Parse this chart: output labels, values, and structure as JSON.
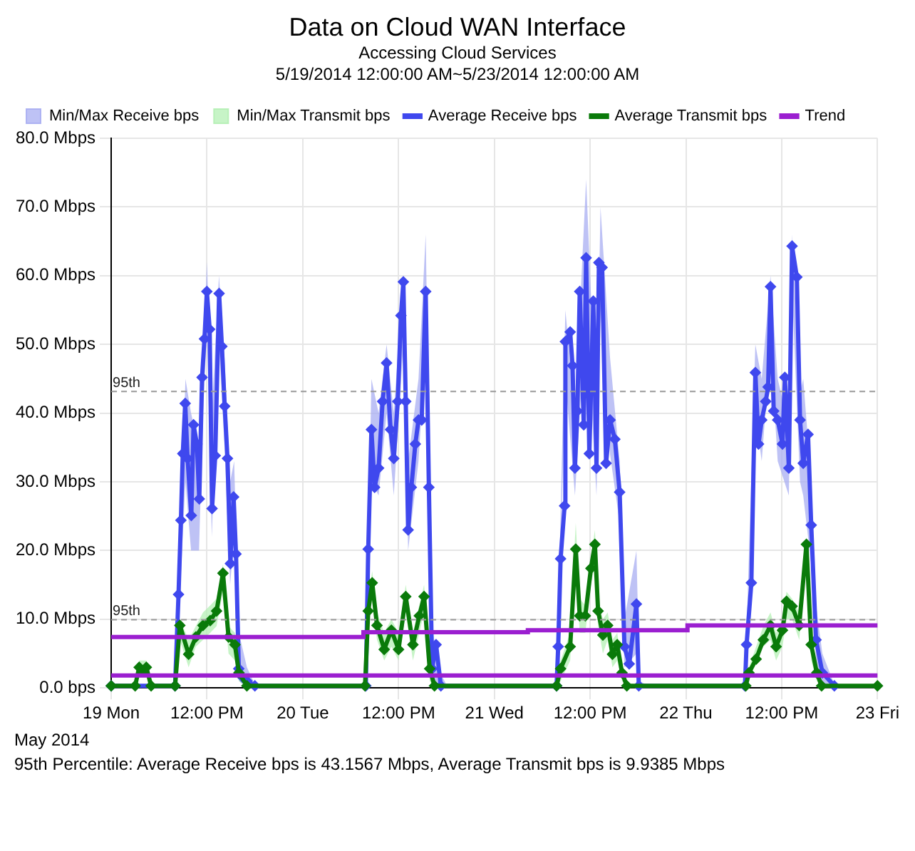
{
  "chart_data": {
    "type": "line",
    "title": "Data on Cloud WAN Interface",
    "subtitle": "Accessing Cloud Services\n5/19/2014 12:00:00 AM~5/23/2014 12:00:00 AM",
    "xlim": [
      "2014-05-19T00:00",
      "2014-05-23T00:00"
    ],
    "xticks": [
      {
        "value": "2014-05-19T00:00",
        "label": "19 Mon"
      },
      {
        "value": "2014-05-19T12:00",
        "label": "12:00 PM"
      },
      {
        "value": "2014-05-20T00:00",
        "label": "20 Tue"
      },
      {
        "value": "2014-05-20T12:00",
        "label": "12:00 PM"
      },
      {
        "value": "2014-05-21T00:00",
        "label": "21 Wed"
      },
      {
        "value": "2014-05-21T12:00",
        "label": "12:00 PM"
      },
      {
        "value": "2014-05-22T00:00",
        "label": "22 Thu"
      },
      {
        "value": "2014-05-22T12:00",
        "label": "12:00 PM"
      },
      {
        "value": "2014-05-23T00:00",
        "label": "23 Fri"
      }
    ],
    "ylim": [
      0,
      80
    ],
    "yticks": [
      {
        "value": 0,
        "label": "0.0 bps"
      },
      {
        "value": 10,
        "label": "10.0 Mbps"
      },
      {
        "value": 20,
        "label": "20.0 Mbps"
      },
      {
        "value": 30,
        "label": "30.0 Mbps"
      },
      {
        "value": 40,
        "label": "40.0 Mbps"
      },
      {
        "value": 50,
        "label": "50.0 Mbps"
      },
      {
        "value": 60,
        "label": "60.0 Mbps"
      },
      {
        "value": 70,
        "label": "70.0 Mbps"
      },
      {
        "value": 80,
        "label": "80.0 Mbps"
      }
    ],
    "grid": true,
    "legend": "top left",
    "series": [
      {
        "name": "Min/Max Receive bps",
        "type": "area",
        "color": "#a8aef2",
        "x": [
          "2014-05-19T00:00",
          "2014-05-19T08:00",
          "2014-05-19T08:30",
          "2014-05-19T09:18",
          "2014-05-19T10:00",
          "2014-05-19T11:00",
          "2014-05-19T11:30",
          "2014-05-19T12:00",
          "2014-05-19T12:36",
          "2014-05-19T13:30",
          "2014-05-19T14:12",
          "2014-05-19T14:54",
          "2014-05-19T15:24",
          "2014-05-19T16:00",
          "2014-05-19T17:00",
          "2014-05-19T18:00",
          "2014-05-20T07:54",
          "2014-05-20T08:36",
          "2014-05-20T09:30",
          "2014-05-20T10:30",
          "2014-05-20T11:24",
          "2014-05-20T12:36",
          "2014-05-20T13:12",
          "2014-05-20T14:30",
          "2014-05-20T15:24",
          "2014-05-20T15:48",
          "2014-05-20T16:18",
          "2014-05-20T17:18",
          "2014-05-20T18:00",
          "2014-05-21T07:48",
          "2014-05-21T08:54",
          "2014-05-21T10:06",
          "2014-05-21T11:30",
          "2014-05-21T12:48",
          "2014-05-21T13:18",
          "2014-05-21T14:30",
          "2014-05-21T15:42",
          "2014-05-21T16:18",
          "2014-05-21T17:48",
          "2014-05-21T18:12",
          "2014-05-21T19:00",
          "2014-05-22T07:24",
          "2014-05-22T08:42",
          "2014-05-22T09:30",
          "2014-05-22T10:36",
          "2014-05-22T11:30",
          "2014-05-22T12:54",
          "2014-05-22T13:18",
          "2014-05-22T14:18",
          "2014-05-22T14:42",
          "2014-05-22T15:42",
          "2014-05-22T16:18",
          "2014-05-22T17:06",
          "2014-05-22T18:36",
          "2014-05-23T00:00"
        ],
        "values": [
          null,
          null,
          null,
          null,
          null,
          null,
          null,
          null,
          null,
          null,
          null,
          null,
          null,
          null,
          null,
          null,
          null,
          null,
          null,
          null,
          null,
          null,
          null,
          null,
          null,
          null,
          null,
          null,
          null,
          null,
          null,
          null,
          null,
          null,
          null,
          null,
          null,
          null,
          null,
          null,
          null,
          null,
          null,
          null,
          null,
          null,
          null,
          null,
          null,
          null,
          null,
          null,
          null,
          null,
          null
        ],
        "upper": [
          0.5,
          0.5,
          16,
          45,
          40,
          35,
          48,
          62,
          40,
          60,
          48,
          30,
          33,
          8,
          3,
          0.5,
          0.5,
          45,
          40,
          50,
          40,
          60,
          33,
          45,
          66,
          38,
          8,
          2,
          0.5,
          0.5,
          55,
          40,
          74,
          38,
          70,
          48,
          33,
          10,
          20,
          1,
          0.5,
          0.5,
          50,
          45,
          60,
          45,
          38,
          66,
          43,
          45,
          30,
          12,
          5,
          0.5,
          0.5
        ],
        "lower": [
          0,
          0,
          11,
          30,
          20,
          20,
          40,
          52,
          22,
          50,
          35,
          15,
          22,
          1,
          0,
          0,
          0,
          30,
          28,
          40,
          28,
          50,
          20,
          33,
          50,
          22,
          1,
          0,
          0,
          0,
          45,
          28,
          55,
          28,
          55,
          34,
          24,
          3,
          5,
          0,
          0,
          0,
          40,
          33,
          50,
          33,
          28,
          58,
          30,
          28,
          18,
          4,
          0,
          0,
          0
        ]
      },
      {
        "name": "Min/Max Transmit bps",
        "type": "area",
        "color": "#b4f0b4",
        "x": [
          "2014-05-19T00:00",
          "2014-05-19T03:00",
          "2014-05-19T03:30",
          "2014-05-19T04:24",
          "2014-05-19T05:00",
          "2014-05-19T08:00",
          "2014-05-19T08:36",
          "2014-05-19T09:42",
          "2014-05-19T10:36",
          "2014-05-19T11:30",
          "2014-05-19T12:24",
          "2014-05-19T13:12",
          "2014-05-19T14:00",
          "2014-05-19T14:42",
          "2014-05-19T15:30",
          "2014-05-19T16:00",
          "2014-05-19T17:00",
          "2014-05-20T07:48",
          "2014-05-20T08:12",
          "2014-05-20T08:42",
          "2014-05-20T09:18",
          "2014-05-20T10:12",
          "2014-05-20T11:06",
          "2014-05-20T12:00",
          "2014-05-20T12:54",
          "2014-05-20T13:48",
          "2014-05-20T14:36",
          "2014-05-20T15:12",
          "2014-05-20T15:54",
          "2014-05-20T16:30",
          "2014-05-21T07:48",
          "2014-05-21T08:18",
          "2014-05-21T09:30",
          "2014-05-21T10:12",
          "2014-05-21T10:42",
          "2014-05-21T11:24",
          "2014-05-21T12:06",
          "2014-05-21T12:36",
          "2014-05-21T13:00",
          "2014-05-21T13:36",
          "2014-05-21T14:12",
          "2014-05-21T14:48",
          "2014-05-21T15:24",
          "2014-05-21T16:00",
          "2014-05-21T16:36",
          "2014-05-22T07:30",
          "2014-05-22T07:54",
          "2014-05-22T08:48",
          "2014-05-22T09:42",
          "2014-05-22T10:36",
          "2014-05-22T11:18",
          "2014-05-22T12:06",
          "2014-05-22T12:36",
          "2014-05-22T13:18",
          "2014-05-22T14:12",
          "2014-05-22T15:06",
          "2014-05-22T15:42",
          "2014-05-22T16:24",
          "2014-05-22T17:00",
          "2014-05-23T00:00"
        ],
        "values": [
          null,
          null,
          null,
          null,
          null,
          null,
          null,
          null,
          null,
          null,
          null,
          null,
          null,
          null,
          null,
          null,
          null,
          null,
          null,
          null,
          null,
          null,
          null,
          null,
          null,
          null,
          null,
          null,
          null,
          null,
          null,
          null,
          null,
          null,
          null,
          null,
          null,
          null,
          null,
          null,
          null,
          null,
          null,
          null,
          null,
          null,
          null,
          null,
          null,
          null,
          null,
          null,
          null,
          null,
          null,
          null,
          null,
          null,
          null,
          null
        ],
        "upper": [
          0.5,
          0.5,
          4,
          4,
          0.5,
          0.5,
          10,
          7,
          9,
          11,
          12,
          13,
          18,
          9,
          8,
          3,
          0.5,
          0.5,
          13,
          17,
          11,
          8,
          10,
          8,
          15,
          8,
          12,
          15,
          4,
          0.5,
          0.5,
          4,
          8,
          24,
          13,
          12,
          19,
          23,
          13,
          10,
          11,
          7,
          8,
          3,
          0.5,
          0.5,
          3,
          6,
          9,
          11,
          8,
          10,
          14,
          13,
          11,
          22,
          8,
          3,
          0.5,
          0.5
        ],
        "lower": [
          0,
          0,
          2,
          2,
          0,
          0,
          7,
          3,
          6,
          7,
          8,
          9,
          14,
          5,
          4,
          1,
          0,
          0,
          9,
          13,
          7,
          4,
          6,
          4,
          11,
          4,
          8,
          11,
          1,
          0,
          0,
          1,
          4,
          17,
          8,
          8,
          15,
          18,
          9,
          5,
          7,
          3,
          4,
          1,
          0,
          0,
          1,
          4,
          6,
          7,
          4,
          6,
          10,
          10,
          7,
          18,
          4,
          1,
          0,
          0
        ]
      },
      {
        "name": "Average Receive bps",
        "color": "#3f48ee",
        "marker": "diamond",
        "x": [
          "2014-05-19T00:00",
          "2014-05-19T08:00",
          "2014-05-19T08:26",
          "2014-05-19T08:44",
          "2014-05-19T08:58",
          "2014-05-19T09:16",
          "2014-05-19T09:34",
          "2014-05-19T10:02",
          "2014-05-19T10:19",
          "2014-05-19T10:44",
          "2014-05-19T11:02",
          "2014-05-19T11:23",
          "2014-05-19T11:41",
          "2014-05-19T11:59",
          "2014-05-19T12:20",
          "2014-05-19T12:38",
          "2014-05-19T13:02",
          "2014-05-19T13:31",
          "2014-05-19T13:52",
          "2014-05-19T14:13",
          "2014-05-19T14:34",
          "2014-05-19T14:56",
          "2014-05-19T15:20",
          "2014-05-19T15:38",
          "2014-05-19T15:59",
          "2014-05-19T16:30",
          "2014-05-19T17:00",
          "2014-05-19T18:00",
          "2014-05-20T07:54",
          "2014-05-20T08:12",
          "2014-05-20T08:36",
          "2014-05-20T09:00",
          "2014-05-20T09:30",
          "2014-05-20T10:00",
          "2014-05-20T10:30",
          "2014-05-20T11:00",
          "2014-05-20T11:24",
          "2014-05-20T11:54",
          "2014-05-20T12:18",
          "2014-05-20T12:36",
          "2014-05-20T12:54",
          "2014-05-20T13:12",
          "2014-05-20T13:36",
          "2014-05-20T14:06",
          "2014-05-20T14:30",
          "2014-05-20T14:54",
          "2014-05-20T15:24",
          "2014-05-20T15:48",
          "2014-05-20T16:12",
          "2014-05-20T16:42",
          "2014-05-20T17:18",
          "2014-05-21T07:48",
          "2014-05-21T08:00",
          "2014-05-21T08:18",
          "2014-05-21T08:48",
          "2014-05-21T08:54",
          "2014-05-21T09:30",
          "2014-05-21T09:48",
          "2014-05-21T10:06",
          "2014-05-21T10:24",
          "2014-05-21T10:42",
          "2014-05-21T11:12",
          "2014-05-21T11:30",
          "2014-05-21T11:54",
          "2014-05-21T12:24",
          "2014-05-21T12:48",
          "2014-05-21T13:06",
          "2014-05-21T13:30",
          "2014-05-21T14:00",
          "2014-05-21T14:30",
          "2014-05-21T15:06",
          "2014-05-21T15:42",
          "2014-05-21T16:18",
          "2014-05-21T16:54",
          "2014-05-21T17:48",
          "2014-05-21T18:06",
          "2014-05-22T07:24",
          "2014-05-22T07:36",
          "2014-05-22T08:12",
          "2014-05-22T08:42",
          "2014-05-22T09:06",
          "2014-05-22T09:30",
          "2014-05-22T10:00",
          "2014-05-22T10:18",
          "2014-05-22T10:36",
          "2014-05-22T11:00",
          "2014-05-22T11:30",
          "2014-05-22T12:06",
          "2014-05-22T12:24",
          "2014-05-22T12:54",
          "2014-05-22T13:18",
          "2014-05-22T13:54",
          "2014-05-22T14:18",
          "2014-05-22T14:42",
          "2014-05-22T15:18",
          "2014-05-22T15:42",
          "2014-05-22T16:18",
          "2014-05-22T17:06",
          "2014-05-22T18:36"
        ],
        "values": [
          0.3,
          0.3,
          13.6,
          24.4,
          34.1,
          41.4,
          33.4,
          25.1,
          38.3,
          35.5,
          27.5,
          45.2,
          50.8,
          57.7,
          52.2,
          26.1,
          33.8,
          57.4,
          49.7,
          41,
          33.4,
          18.1,
          27.8,
          19.5,
          2.8,
          1.5,
          1,
          0.3,
          0.3,
          20.2,
          37.6,
          29.2,
          32,
          41.7,
          47.3,
          37.6,
          33.4,
          41.7,
          54.2,
          59.1,
          41.7,
          23,
          29.2,
          35.5,
          39,
          39,
          57.7,
          29.2,
          2.8,
          6.3,
          0.3,
          0.3,
          6,
          18.8,
          26.5,
          50.4,
          51.8,
          46.9,
          32,
          40.3,
          57.7,
          38.3,
          62.6,
          34.1,
          56.3,
          32,
          61.9,
          61.2,
          32.7,
          39,
          36.2,
          28.5,
          6,
          3.5,
          12.2,
          0.3,
          0.3,
          6.3,
          15.3,
          45.9,
          35.5,
          39,
          41.7,
          43.8,
          58.4,
          40.3,
          39,
          35.5,
          45.2,
          32,
          64.3,
          59.8,
          39,
          32.7,
          36.9,
          23.7,
          7,
          2.2,
          0.3
        ]
      },
      {
        "name": "Average Transmit bps",
        "color": "#0a7a0a",
        "marker": "diamond",
        "x": [
          "2014-05-19T00:00",
          "2014-05-19T03:00",
          "2014-05-19T03:30",
          "2014-05-19T04:00",
          "2014-05-19T04:24",
          "2014-05-19T05:00",
          "2014-05-19T08:00",
          "2014-05-19T08:36",
          "2014-05-19T09:42",
          "2014-05-19T10:36",
          "2014-05-19T11:30",
          "2014-05-19T12:24",
          "2014-05-19T13:12",
          "2014-05-19T14:00",
          "2014-05-19T14:42",
          "2014-05-19T15:30",
          "2014-05-19T16:00",
          "2014-05-19T17:00",
          "2014-05-20T07:48",
          "2014-05-20T08:12",
          "2014-05-20T08:42",
          "2014-05-20T09:18",
          "2014-05-20T10:12",
          "2014-05-20T11:06",
          "2014-05-20T12:00",
          "2014-05-20T12:54",
          "2014-05-20T13:48",
          "2014-05-20T14:36",
          "2014-05-20T15:12",
          "2014-05-20T15:54",
          "2014-05-20T16:30",
          "2014-05-21T07:48",
          "2014-05-21T08:18",
          "2014-05-21T09:30",
          "2014-05-21T10:12",
          "2014-05-21T10:42",
          "2014-05-21T11:24",
          "2014-05-21T12:06",
          "2014-05-21T12:36",
          "2014-05-21T13:00",
          "2014-05-21T13:36",
          "2014-05-21T14:12",
          "2014-05-21T14:48",
          "2014-05-21T15:24",
          "2014-05-21T16:00",
          "2014-05-21T16:36",
          "2014-05-22T07:30",
          "2014-05-22T07:54",
          "2014-05-22T08:48",
          "2014-05-22T09:42",
          "2014-05-22T10:36",
          "2014-05-22T11:18",
          "2014-05-22T12:06",
          "2014-05-22T12:36",
          "2014-05-22T13:18",
          "2014-05-22T14:12",
          "2014-05-22T15:06",
          "2014-05-22T15:42",
          "2014-05-22T16:24",
          "2014-05-22T17:00",
          "2014-05-23T00:00"
        ],
        "values": [
          0.3,
          0.3,
          3,
          2.5,
          3,
          0.3,
          0.3,
          9.1,
          4.9,
          7.4,
          9.1,
          9.8,
          11.2,
          16.7,
          7.4,
          6.3,
          2.2,
          0.3,
          0.3,
          11.2,
          15.3,
          9.1,
          5.6,
          8.4,
          5.6,
          13.3,
          6.3,
          10.5,
          13.3,
          2.8,
          0.3,
          0.3,
          2.8,
          6,
          20.2,
          10.5,
          10.5,
          17.4,
          20.9,
          11.2,
          7.7,
          9.1,
          4.9,
          6.3,
          2.2,
          0.3,
          0.3,
          2.2,
          4.2,
          7,
          9.1,
          6,
          8.4,
          12.6,
          11.9,
          9.1,
          20.9,
          6.3,
          2.2,
          0.3,
          0.3
        ]
      },
      {
        "name": "Trend",
        "type": "step",
        "color": "#9b1fd0",
        "x": [
          "2014-05-19T00:00",
          "2014-05-20T07:36",
          "2014-05-21T04:12",
          "2014-05-22T00:12",
          "2014-05-23T00:00"
        ],
        "values": [
          7.4,
          8.1,
          8.4,
          9.1,
          9.1
        ]
      },
      {
        "type": "step",
        "color": "#9b1fd0",
        "x": [
          "2014-05-19T00:00",
          "2014-05-23T00:00"
        ],
        "values": [
          1.8,
          1.8
        ]
      }
    ],
    "ref_lines": [
      {
        "axis": "y",
        "value": 43.1567,
        "label": "95th",
        "color": "#999999",
        "line_style": "dashed"
      },
      {
        "axis": "y",
        "value": 9.9385,
        "label": "95th",
        "color": "#999999",
        "line_style": "dashed"
      }
    ],
    "annotations": [
      "May 2014",
      "95th Percentile: Average Receive bps is 43.1567 Mbps, Average Transmit bps is 9.9385 Mbps"
    ]
  }
}
